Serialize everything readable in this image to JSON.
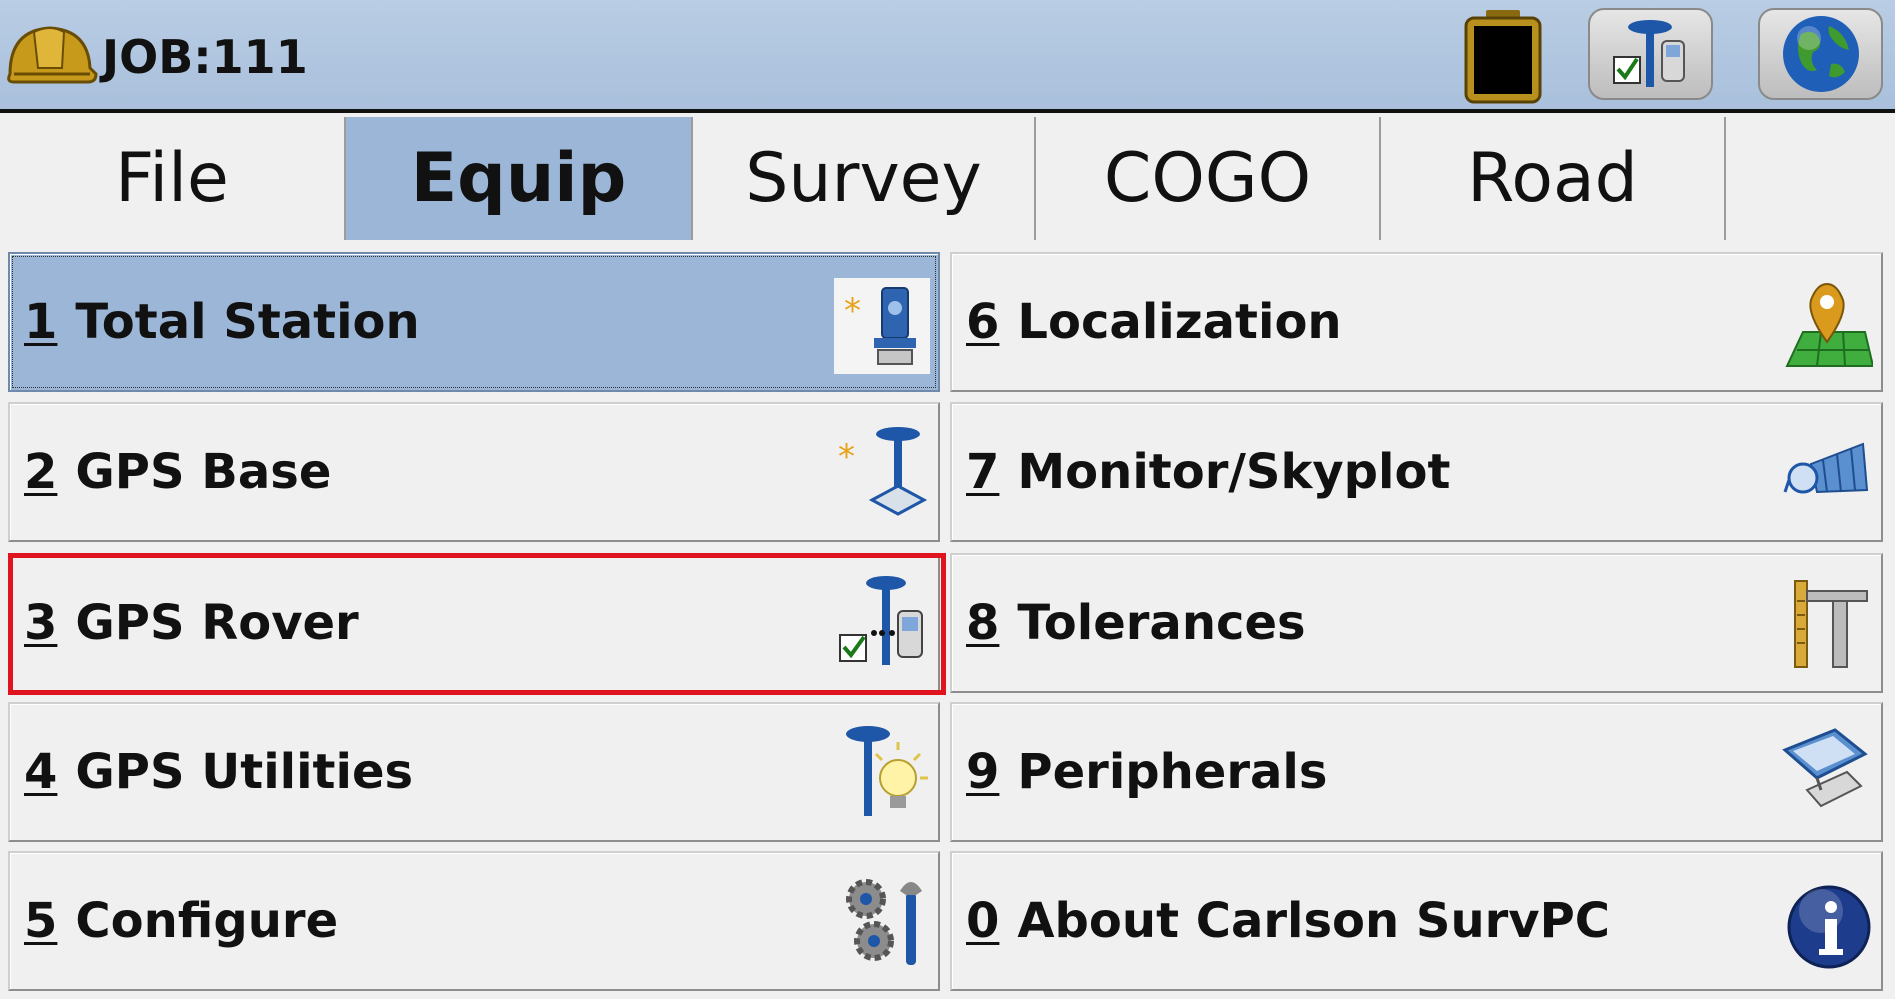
{
  "header": {
    "job_title": "JOB:111",
    "icons": [
      "hard-hat-icon",
      "battery-icon",
      "gps-rover-icon",
      "globe-icon"
    ]
  },
  "tabs": [
    {
      "label": "File",
      "active": false
    },
    {
      "label": "Equip",
      "active": true
    },
    {
      "label": "Survey",
      "active": false
    },
    {
      "label": "COGO",
      "active": false
    },
    {
      "label": "Road",
      "active": false
    }
  ],
  "menu": {
    "left": [
      {
        "num": "1",
        "label": "Total Station",
        "icon": "total-station-icon",
        "selected": true
      },
      {
        "num": "2",
        "label": "GPS Base",
        "icon": "gps-base-icon"
      },
      {
        "num": "3",
        "label": "GPS Rover",
        "icon": "gps-rover-icon",
        "highlighted": true
      },
      {
        "num": "4",
        "label": "GPS Utilities",
        "icon": "gps-utilities-icon"
      },
      {
        "num": "5",
        "label": "Configure",
        "icon": "gears-wrench-icon"
      }
    ],
    "right": [
      {
        "num": "6",
        "label": "Localization",
        "icon": "map-pin-icon"
      },
      {
        "num": "7",
        "label": "Monitor/Skyplot",
        "icon": "satellite-icon"
      },
      {
        "num": "8",
        "label": "Tolerances",
        "icon": "caliper-icon"
      },
      {
        "num": "9",
        "label": "Peripherals",
        "icon": "handheld-device-icon"
      },
      {
        "num": "0",
        "label": "About Carlson SurvPC",
        "icon": "info-icon"
      }
    ]
  },
  "colors": {
    "header_bg": "#b2c8e1",
    "active_tab": "#9bb6d6",
    "highlight": "#e0141f"
  }
}
